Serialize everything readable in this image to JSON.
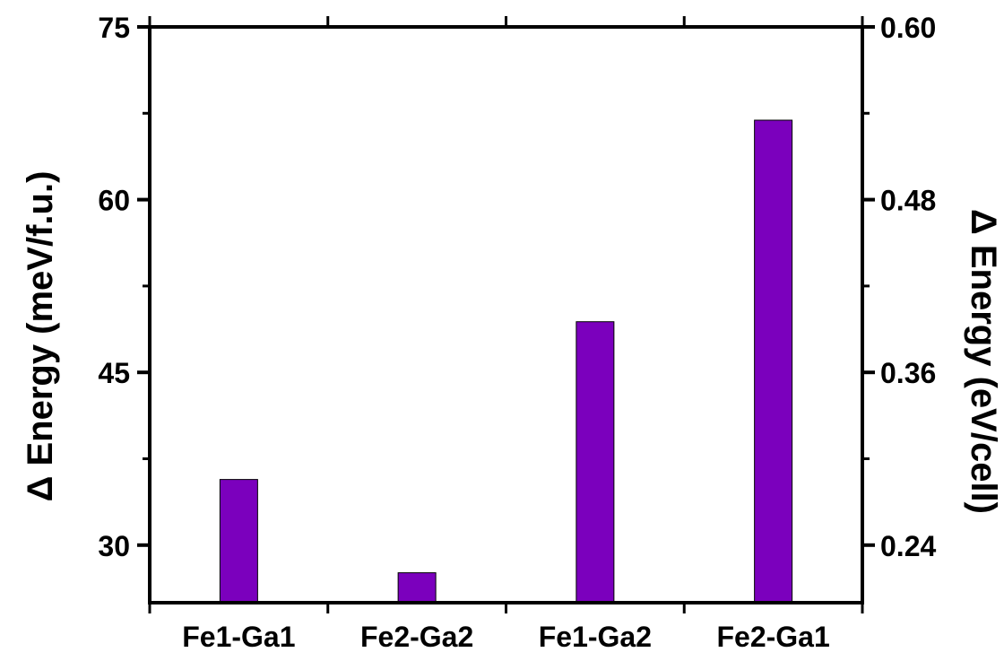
{
  "chart_data": {
    "type": "bar",
    "categories": [
      "Fe1-Ga1",
      "Fe2-Ga2",
      "Fe1-Ga2",
      "Fe2-Ga1"
    ],
    "values": [
      35.7,
      27.6,
      49.4,
      66.9
    ],
    "ylabel": "Δ Energy (meV/f.u.)",
    "y2label": "Δ Energy (eV/cell)",
    "ylim": [
      25,
      75
    ],
    "y2lim": [
      0.2,
      0.6
    ],
    "yticks": [
      30,
      45,
      60,
      75
    ],
    "yticks_minor": [
      37.5,
      52.5,
      67.5
    ],
    "ytick_labels": [
      "30",
      "45",
      "60",
      "75"
    ],
    "y2ticks": [
      0.24,
      0.36,
      0.48,
      0.6
    ],
    "y2ticks_minor": [
      0.3,
      0.42,
      0.54
    ],
    "y2tick_labels": [
      "0.24",
      "0.36",
      "0.48",
      "0.60"
    ],
    "bar_color": "#7b00bd",
    "grid": false,
    "legend": "none"
  }
}
